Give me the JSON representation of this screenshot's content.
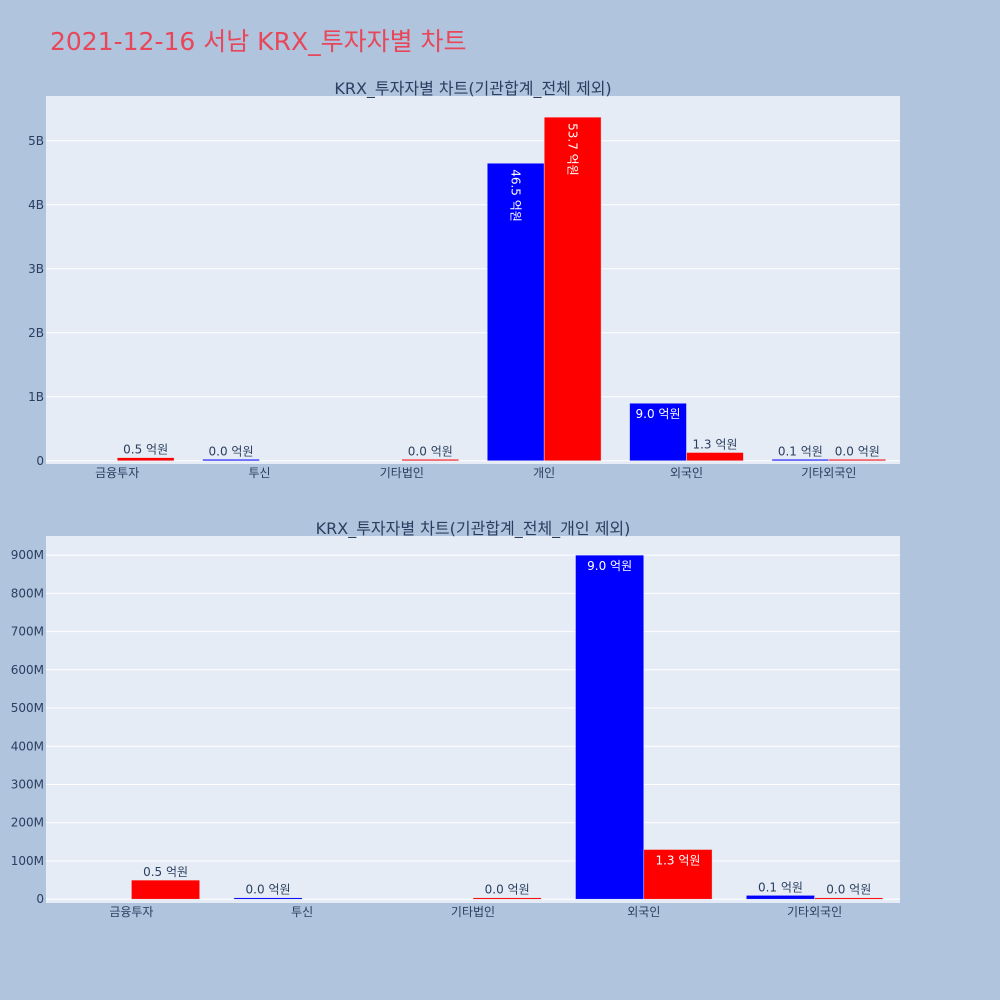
{
  "title": "2021-12-16 서남 KRX_투자자별 차트",
  "colors": {
    "buy": "#0000ff",
    "sell": "#ff0000",
    "title": "#e8475a",
    "background": "#b0c4de",
    "plot": "#e5ecf6"
  },
  "chart_data": [
    {
      "type": "bar",
      "title": "KRX_투자자별 차트(기관합계_전체 제외)",
      "categories": [
        "금융투자",
        "투신",
        "기타법인",
        "개인",
        "외국인",
        "기타외국인"
      ],
      "series": [
        {
          "color": "#0000ff",
          "values": [
            null,
            0.0,
            null,
            4650000000,
            900000000,
            10000000
          ],
          "labels": [
            "",
            "0.0 억원",
            "",
            "46.5 억원",
            "9.0 억원",
            "0.1 억원"
          ]
        },
        {
          "color": "#ff0000",
          "values": [
            50000000,
            null,
            0.0,
            5370000000,
            130000000,
            0.0
          ],
          "labels": [
            "0.5 억원",
            "",
            "0.0 억원",
            "53.7 억원",
            "1.3 억원",
            "0.0 억원"
          ]
        }
      ],
      "yticks": [
        0,
        1000000000,
        2000000000,
        3000000000,
        4000000000,
        5000000000
      ],
      "ytick_labels": [
        "0",
        "1B",
        "2B",
        "3B",
        "4B",
        "5B"
      ],
      "ylim": [
        -50000000,
        5700000000
      ],
      "grid": true,
      "barmode": "group"
    },
    {
      "type": "bar",
      "title": "KRX_투자자별 차트(기관합계_전체_개인 제외)",
      "categories": [
        "금융투자",
        "투신",
        "기타법인",
        "외국인",
        "기타외국인"
      ],
      "series": [
        {
          "color": "#0000ff",
          "values": [
            null,
            0.0,
            null,
            900000000,
            10000000
          ],
          "labels": [
            "",
            "0.0 억원",
            "",
            "9.0 억원",
            "0.1 억원"
          ]
        },
        {
          "color": "#ff0000",
          "values": [
            50000000,
            null,
            0.0,
            130000000,
            0.0
          ],
          "labels": [
            "0.5 억원",
            "",
            "0.0 억원",
            "1.3 억원",
            "0.0 억원"
          ]
        }
      ],
      "yticks": [
        0,
        100000000,
        200000000,
        300000000,
        400000000,
        500000000,
        600000000,
        700000000,
        800000000,
        900000000
      ],
      "ytick_labels": [
        "0",
        "100M",
        "200M",
        "300M",
        "400M",
        "500M",
        "600M",
        "700M",
        "800M",
        "900M"
      ],
      "ylim": [
        -10000000,
        950000000
      ],
      "grid": true,
      "barmode": "group"
    }
  ]
}
